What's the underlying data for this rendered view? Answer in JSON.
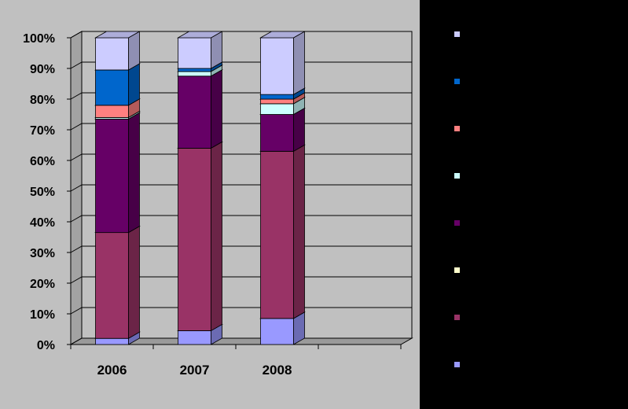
{
  "chart_data": {
    "type": "bar",
    "stacked": true,
    "normalized": true,
    "view": "3d",
    "categories": [
      "2006",
      "2007",
      "2008"
    ],
    "category_slots": 4,
    "y_ticks": [
      "0%",
      "10%",
      "20%",
      "30%",
      "40%",
      "50%",
      "60%",
      "70%",
      "80%",
      "90%",
      "100%"
    ],
    "ylim": [
      0,
      100
    ],
    "grid": true,
    "legend_position": "right",
    "title": "",
    "xlabel": "",
    "ylabel": "",
    "series": [
      {
        "color": "#9999ff",
        "values": [
          2,
          4.5,
          8.5
        ]
      },
      {
        "color": "#993366",
        "values": [
          34.5,
          59.5,
          54.5
        ]
      },
      {
        "color": "#ffffcc",
        "values": [
          0,
          0,
          0
        ]
      },
      {
        "color": "#660066",
        "values": [
          37,
          23.5,
          12
        ]
      },
      {
        "color": "#ccffff",
        "values": [
          0.5,
          1.5,
          3.5
        ]
      },
      {
        "color": "#ff8080",
        "values": [
          4,
          0,
          1.5
        ]
      },
      {
        "color": "#0066cc",
        "values": [
          11.5,
          1,
          1.5
        ]
      },
      {
        "color": "#ccccff",
        "values": [
          10.5,
          10,
          18.5
        ]
      }
    ],
    "colors": {
      "page_background": "#000000",
      "plot_background": "#c0c0c0",
      "panel_background": "#c0c0c0",
      "gridline": "#000000"
    }
  }
}
